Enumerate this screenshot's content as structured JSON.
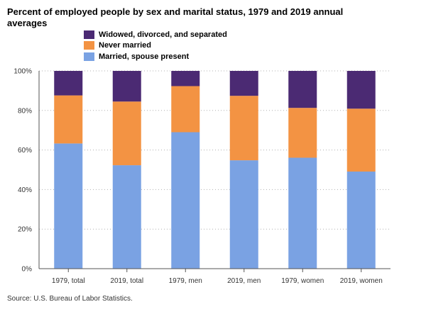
{
  "chart_data": {
    "type": "bar",
    "stacked": true,
    "title": "Percent of employed people by sex and marital status, 1979 and 2019 annual averages",
    "categories": [
      "1979, total",
      "2019, total",
      "1979, men",
      "2019, men",
      "1979, women",
      "2019, women"
    ],
    "series": [
      {
        "name": "Married, spouse present",
        "color": "#7aa2e3",
        "values": [
          63.3,
          52.3,
          69.0,
          54.8,
          56.1,
          49.1
        ]
      },
      {
        "name": "Never married",
        "color": "#f39343",
        "values": [
          24.3,
          32.2,
          23.3,
          32.6,
          25.2,
          31.8
        ]
      },
      {
        "name": "Widowed, divorced, and separated",
        "color": "#4b2a73",
        "values": [
          12.4,
          15.5,
          7.7,
          12.6,
          18.7,
          19.1
        ]
      }
    ],
    "y_ticks": [
      "0%",
      "20%",
      "40%",
      "60%",
      "80%",
      "100%"
    ],
    "ylim": [
      0,
      100
    ],
    "xlabel": "",
    "ylabel": "",
    "grid": true,
    "legend_position": "top"
  },
  "source_note": "Source: U.S. Bureau of Labor Statistics."
}
